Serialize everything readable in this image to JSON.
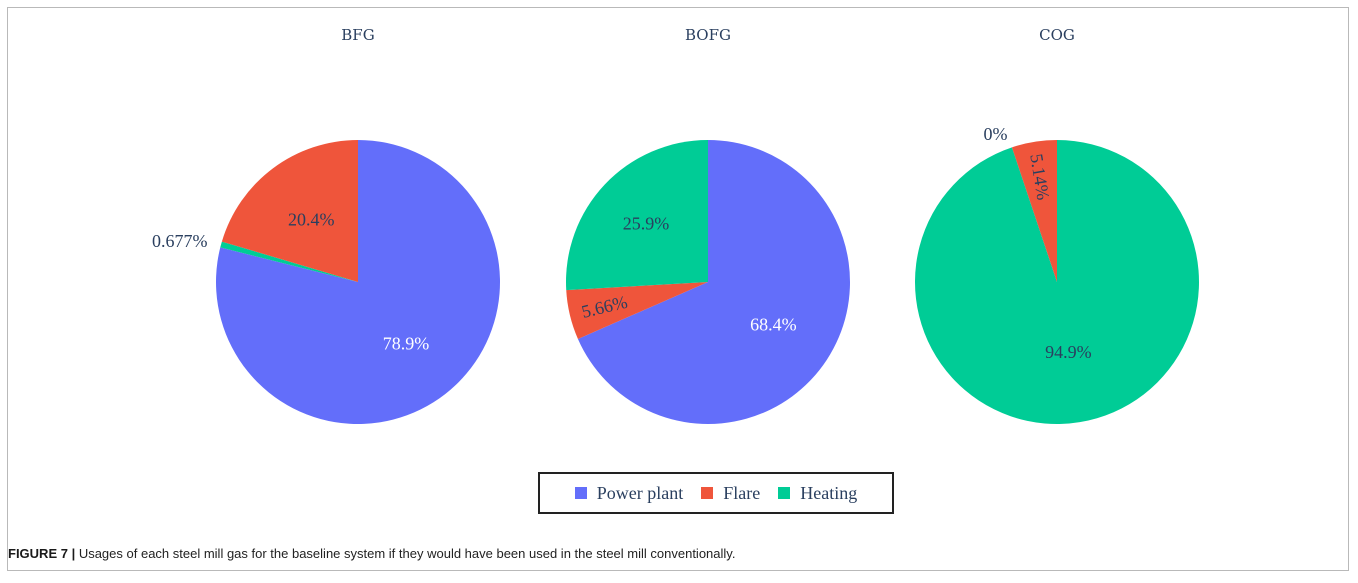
{
  "colors": {
    "power_plant": "#636efa",
    "flare": "#ef553b",
    "heating": "#00cc96"
  },
  "chart_data": [
    {
      "type": "pie",
      "title": "BFG",
      "slices": [
        {
          "label": "Power plant",
          "value": 78.9,
          "text": "78.9%"
        },
        {
          "label": "Heating",
          "value": 0.677,
          "text": "0.677%"
        },
        {
          "label": "Flare",
          "value": 20.4,
          "text": "20.4%"
        }
      ]
    },
    {
      "type": "pie",
      "title": "BOFG",
      "slices": [
        {
          "label": "Power plant",
          "value": 68.4,
          "text": "68.4%"
        },
        {
          "label": "Flare",
          "value": 5.66,
          "text": "5.66%"
        },
        {
          "label": "Heating",
          "value": 25.9,
          "text": "25.9%"
        }
      ]
    },
    {
      "type": "pie",
      "title": "COG",
      "slices": [
        {
          "label": "Heating",
          "value": 94.9,
          "text": "94.9%"
        },
        {
          "label": "Power plant",
          "value": 0,
          "text": "0%"
        },
        {
          "label": "Flare",
          "value": 5.14,
          "text": "5.14%"
        }
      ]
    }
  ],
  "legend": {
    "items": [
      {
        "label": "Power plant",
        "key": "power_plant"
      },
      {
        "label": "Flare",
        "key": "flare"
      },
      {
        "label": "Heating",
        "key": "heating"
      }
    ]
  },
  "caption": {
    "figure_label": "FIGURE 7 |",
    "text": " Usages of each steel mill gas for the baseline system if they would have been used in the steel mill conventionally."
  }
}
